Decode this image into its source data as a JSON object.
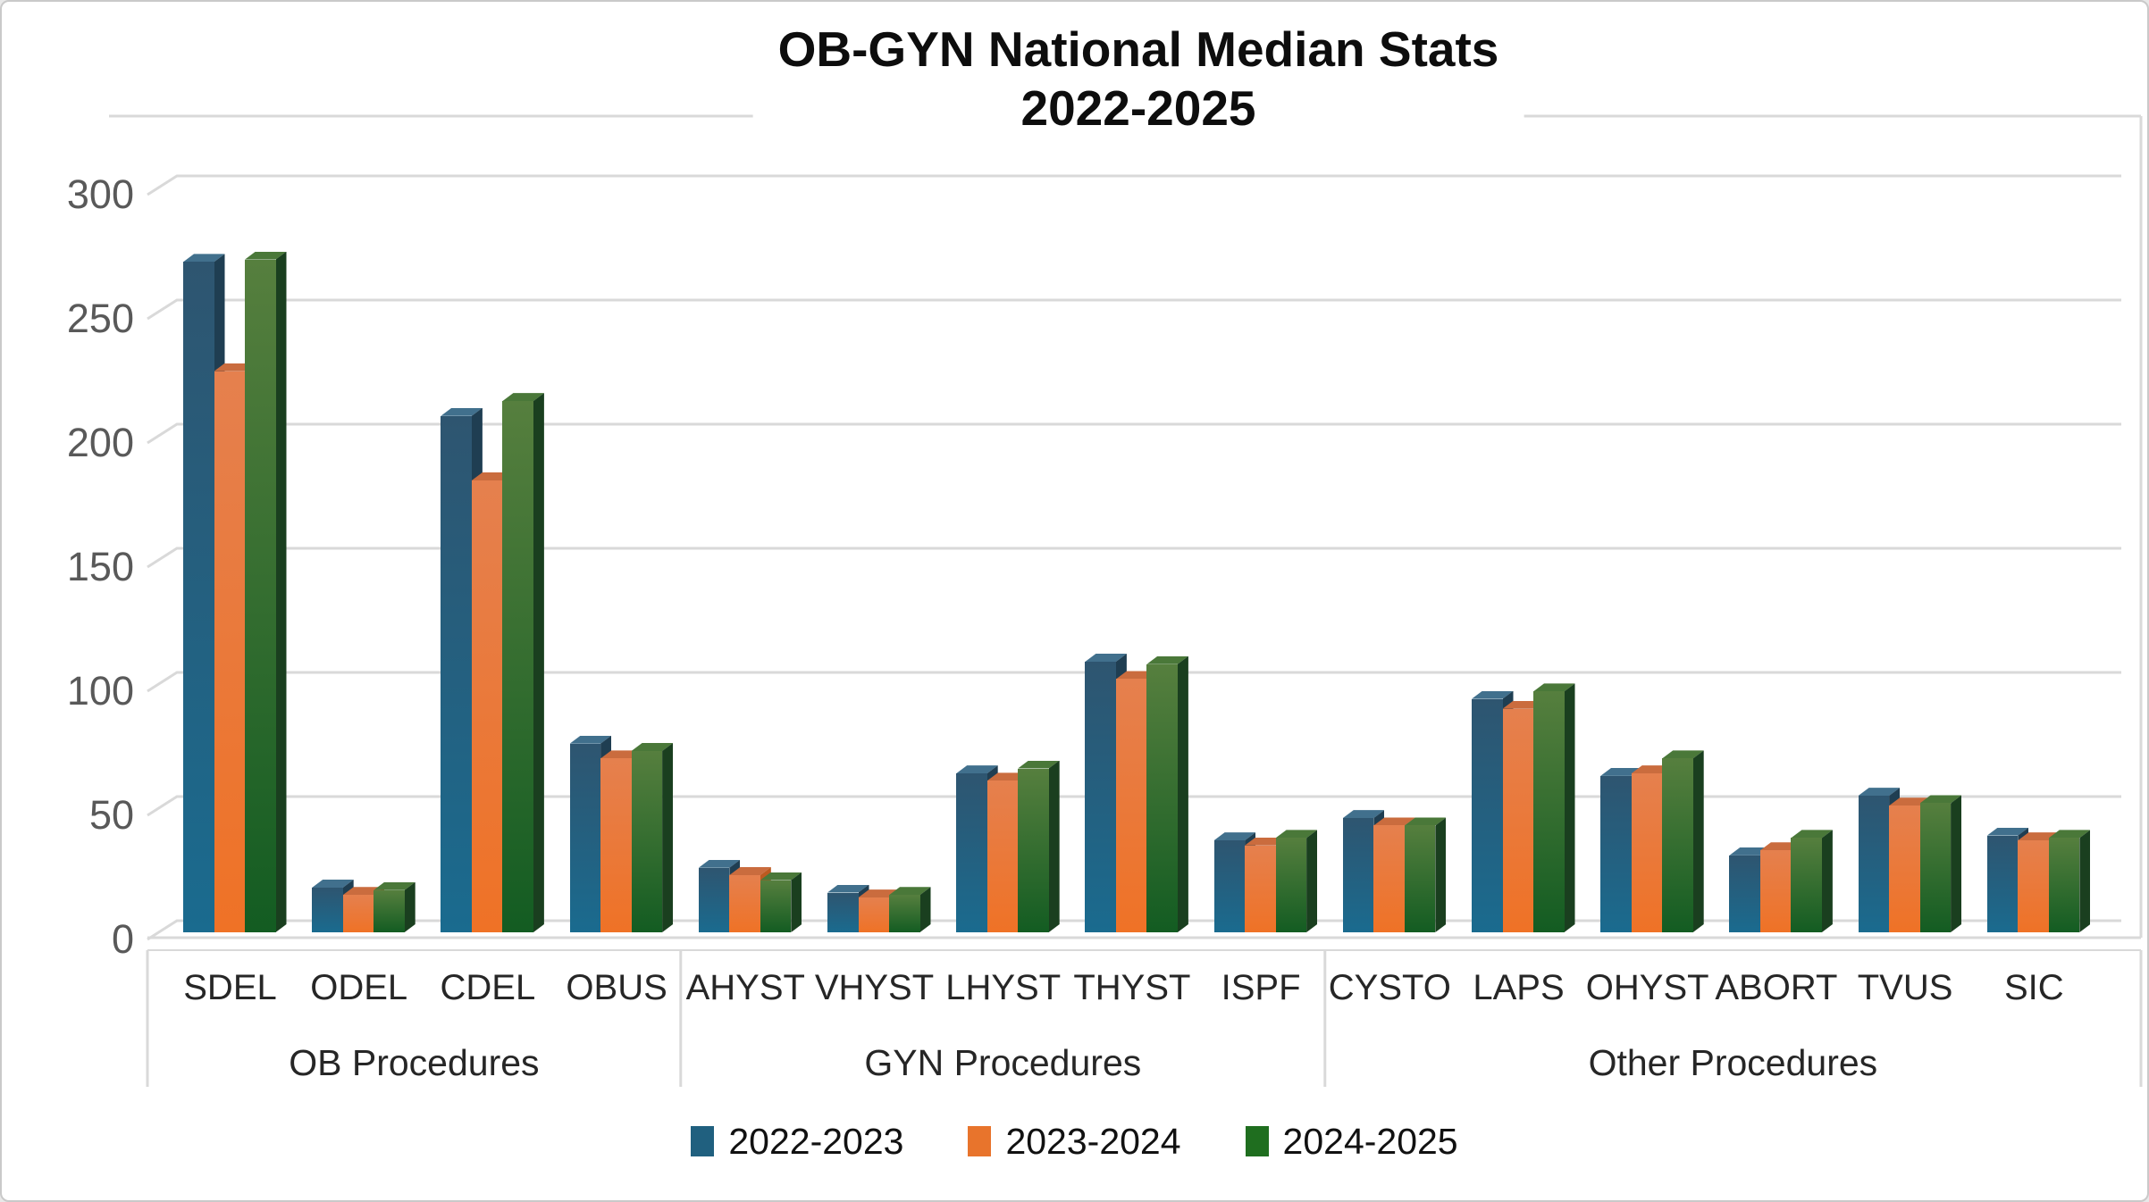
{
  "title": {
    "line1": "OB-GYN National Median Stats",
    "line2": "2022-2025"
  },
  "legend": {
    "items": [
      {
        "label": "2022-2023",
        "color": "#20607F"
      },
      {
        "label": "2023-2024",
        "color": "#E8742C"
      },
      {
        "label": "2024-2025",
        "color": "#1F6E1F"
      }
    ]
  },
  "axis_colors": {
    "gridline": "#D9D9D9",
    "tick_text": "#595959"
  },
  "chart_data": {
    "type": "bar",
    "title": "OB-GYN National Median Stats 2022-2025",
    "xlabel": "",
    "ylabel": "",
    "ylim": [
      0,
      300
    ],
    "yticks": [
      0,
      50,
      100,
      150,
      200,
      250,
      300
    ],
    "grid": true,
    "legend_position": "bottom",
    "style": "3d-clustered-column",
    "categories": [
      "SDEL",
      "ODEL",
      "CDEL",
      "OBUS",
      "AHYST",
      "VHYST",
      "LHYST",
      "THYST",
      "ISPF",
      "CYSTO",
      "LAPS",
      "OHYST",
      "ABORT",
      "TVUS",
      "SIC"
    ],
    "groups": [
      {
        "label": "OB Procedures",
        "categories": [
          "SDEL",
          "ODEL",
          "CDEL",
          "OBUS"
        ]
      },
      {
        "label": "GYN Procedures",
        "categories": [
          "AHYST",
          "VHYST",
          "LHYST",
          "THYST",
          "ISPF"
        ]
      },
      {
        "label": "Other Procedures",
        "categories": [
          "CYSTO",
          "LAPS",
          "OHYST",
          "ABORT",
          "TVUS",
          "SIC"
        ]
      }
    ],
    "series": [
      {
        "name": "2022-2023",
        "front_top": "#2E5570",
        "front_bottom": "#1A6B8F",
        "top_face": "#41708D",
        "side_face": "#1F3E52",
        "values": [
          270,
          18,
          208,
          76,
          26,
          16,
          64,
          109,
          37,
          46,
          94,
          63,
          31,
          55,
          39
        ]
      },
      {
        "name": "2023-2024",
        "front_top": "#E5804E",
        "front_bottom": "#EF7226",
        "top_face": "#CA6C3E",
        "side_face": "#BC5A20",
        "values": [
          226,
          15,
          182,
          70,
          23,
          14,
          61,
          102,
          35,
          43,
          90,
          64,
          33,
          51,
          37
        ]
      },
      {
        "name": "2024-2025",
        "front_top": "#567F3E",
        "front_bottom": "#135C22",
        "top_face": "#4A7839",
        "side_face": "#1A3F1F",
        "values": [
          271,
          17,
          214,
          73,
          21,
          15,
          66,
          108,
          38,
          43,
          97,
          70,
          38,
          52,
          38
        ]
      }
    ]
  }
}
